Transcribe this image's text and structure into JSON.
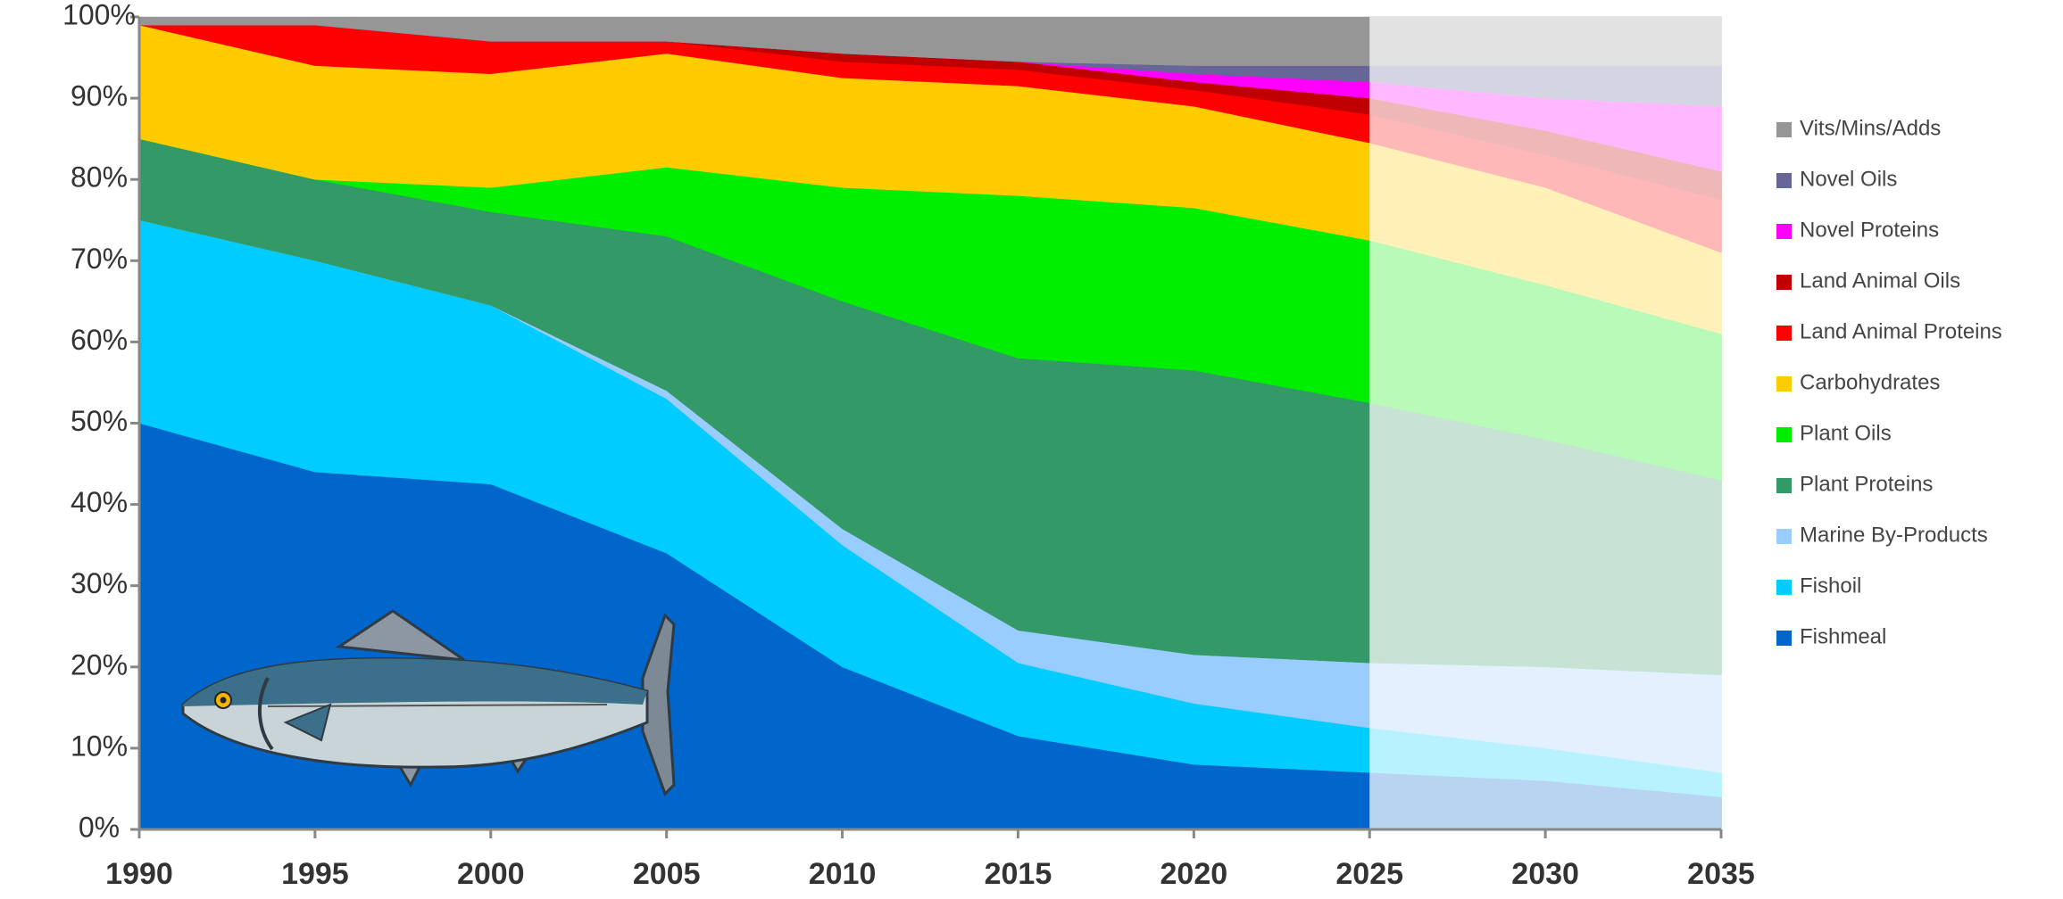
{
  "chart_data": {
    "type": "stacked_area_percent",
    "x": [
      1990,
      1995,
      2000,
      2005,
      2010,
      2015,
      2020,
      2025,
      2030,
      2035
    ],
    "xlim": [
      1990,
      2035
    ],
    "xticks": [
      1990,
      1995,
      2000,
      2005,
      2010,
      2015,
      2020,
      2025,
      2030,
      2035
    ],
    "ylim": [
      0,
      100
    ],
    "yticks": [
      {
        "value": 0,
        "label": "0%"
      },
      {
        "value": 10,
        "label": "10%"
      },
      {
        "value": 20,
        "label": "20%"
      },
      {
        "value": 30,
        "label": "30%"
      },
      {
        "value": 40,
        "label": "40%"
      },
      {
        "value": 50,
        "label": "50%"
      },
      {
        "value": 60,
        "label": "60%"
      },
      {
        "value": 70,
        "label": "70%"
      },
      {
        "value": 80,
        "label": "80%"
      },
      {
        "value": 90,
        "label": "90%"
      },
      {
        "value": 100,
        "label": "100%"
      }
    ],
    "shaded_from": 2025,
    "legend": "right",
    "series": [
      {
        "name": "Fishmeal",
        "color": "#0066cc",
        "values": [
          50,
          44,
          42.5,
          34,
          20,
          11.5,
          8,
          7,
          6,
          4
        ]
      },
      {
        "name": "Fishoil",
        "color": "#00ccff",
        "values": [
          25,
          26,
          22,
          19,
          15,
          9,
          7.5,
          5.5,
          4,
          3
        ]
      },
      {
        "name": "Marine By-Products",
        "color": "#99ccff",
        "values": [
          0,
          0,
          0,
          1,
          2,
          4,
          6,
          8,
          10,
          12
        ]
      },
      {
        "name": "Plant Proteins",
        "color": "#339966",
        "values": [
          10,
          10,
          11.5,
          19,
          28,
          33.5,
          35,
          32,
          28,
          24
        ]
      },
      {
        "name": "Plant Oils",
        "color": "#00ee00",
        "values": [
          0,
          0,
          3,
          8.5,
          14,
          20,
          20,
          20,
          19,
          18
        ]
      },
      {
        "name": "Carbohydrates",
        "color": "#ffcc00",
        "values": [
          14,
          14,
          14,
          14,
          13.5,
          13.5,
          12.5,
          12,
          12,
          10
        ]
      },
      {
        "name": "Land Animal Proteins",
        "color": "#ff0000",
        "values": [
          0,
          5,
          4,
          1.5,
          2,
          2,
          2,
          3.5,
          4,
          6.5
        ]
      },
      {
        "name": "Land Animal Oils",
        "color": "#c00000",
        "values": [
          0,
          0,
          0,
          0,
          1,
          1,
          1,
          2,
          3,
          3.5
        ]
      },
      {
        "name": "Novel Proteins",
        "color": "#ff00ff",
        "values": [
          0,
          0,
          0,
          0,
          0,
          0,
          1,
          2,
          4,
          8
        ]
      },
      {
        "name": "Novel Oils",
        "color": "#666699",
        "values": [
          0,
          0,
          0,
          0,
          0,
          0,
          1,
          2,
          4,
          5
        ]
      },
      {
        "name": "Vits/Mins/Adds",
        "color": "#969696",
        "values": [
          1,
          1,
          3,
          3,
          4.5,
          5.5,
          6,
          6,
          6,
          6
        ]
      }
    ]
  }
}
